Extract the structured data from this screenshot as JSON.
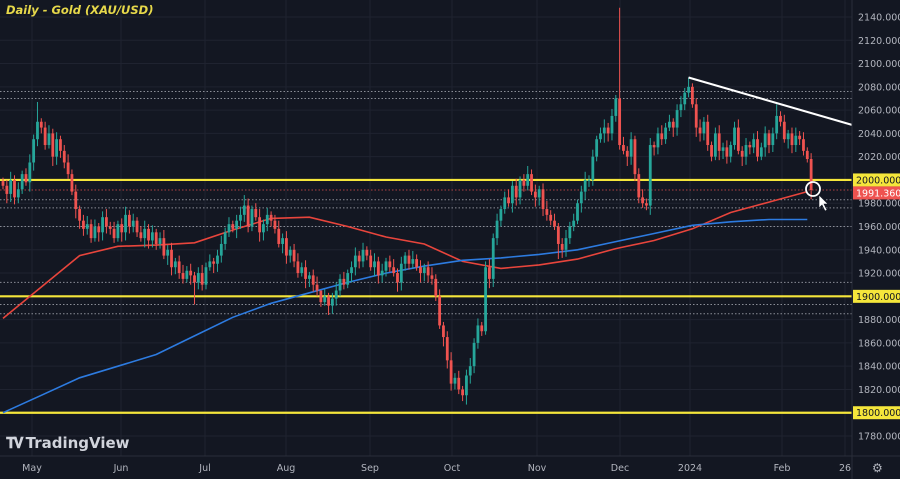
{
  "title": "Daily - Gold (XAU/USD)",
  "brand": "TradingView",
  "colors": {
    "background": "#131722",
    "up": "#26a69a",
    "down": "#ef5350",
    "ma_fast": "#e8453c",
    "ma_slow": "#2d7be0",
    "level": "#f5e63b",
    "trendline": "#ffffff",
    "axis_text": "#b2b5be"
  },
  "chart_data": {
    "type": "candlestick",
    "title": "Daily - Gold (XAU/USD)",
    "ylim": [
      1770,
      2150
    ],
    "grid": true,
    "y_ticks": [
      2140,
      2120,
      2100,
      2080,
      2060,
      2040,
      2020,
      2000,
      1980,
      1960,
      1940,
      1920,
      1900,
      1880,
      1860,
      1840,
      1820,
      1800,
      1780
    ],
    "x_tick_labels": [
      "May",
      "Jun",
      "Jul",
      "Aug",
      "Sep",
      "Oct",
      "Nov",
      "Dec",
      "2024",
      "Feb",
      "26"
    ],
    "closes": [
      1995,
      1988,
      2000,
      1985,
      1992,
      2005,
      1998,
      2015,
      2035,
      2050,
      2045,
      2030,
      2040,
      2020,
      2035,
      2025,
      2015,
      2005,
      1990,
      1975,
      1965,
      1958,
      1962,
      1950,
      1960,
      1955,
      1968,
      1960,
      1958,
      1950,
      1962,
      1955,
      1970,
      1960,
      1965,
      1955,
      1950,
      1958,
      1948,
      1955,
      1945,
      1950,
      1935,
      1940,
      1925,
      1930,
      1920,
      1915,
      1922,
      1918,
      1912,
      1920,
      1910,
      1925,
      1930,
      1928,
      1935,
      1945,
      1955,
      1962,
      1958,
      1965,
      1970,
      1978,
      1960,
      1975,
      1968,
      1955,
      1962,
      1970,
      1965,
      1958,
      1945,
      1950,
      1935,
      1940,
      1930,
      1920,
      1925,
      1915,
      1918,
      1910,
      1905,
      1895,
      1900,
      1892,
      1898,
      1905,
      1915,
      1910,
      1920,
      1925,
      1935,
      1930,
      1940,
      1935,
      1925,
      1930,
      1918,
      1922,
      1930,
      1925,
      1920,
      1912,
      1928,
      1935,
      1928,
      1932,
      1925,
      1920,
      1925,
      1918,
      1915,
      1900,
      1875,
      1865,
      1845,
      1825,
      1830,
      1820,
      1815,
      1832,
      1840,
      1860,
      1875,
      1870,
      1925,
      1915,
      1950,
      1965,
      1975,
      1985,
      1980,
      1995,
      1985,
      2000,
      1995,
      2005,
      1990,
      1985,
      1992,
      1975,
      1970,
      1965,
      1960,
      1945,
      1940,
      1950,
      1960,
      1965,
      1980,
      1990,
      2000,
      2000,
      2020,
      2035,
      2040,
      2045,
      2040,
      2055,
      2070,
      2030,
      2025,
      2020,
      2035,
      2005,
      1985,
      1980,
      1978,
      2030,
      2028,
      2040,
      2035,
      2045,
      2050,
      2045,
      2060,
      2065,
      2075,
      2080,
      2065,
      2045,
      2040,
      2050,
      2030,
      2020,
      2040,
      2025,
      2028,
      2020,
      2030,
      2045,
      2025,
      2020,
      2030,
      2028,
      2035,
      2020,
      2028,
      2040,
      2030,
      2040,
      2055,
      2050,
      2035,
      2040,
      2030,
      2038,
      2035,
      2025,
      2018,
      1991.36
    ],
    "high_overrides": {
      "9": 2067,
      "63": 1987,
      "83": 1898,
      "161": 2148,
      "179": 2088,
      "202": 2065
    },
    "low_overrides": {
      "50": 1893,
      "85": 1884,
      "120": 1810,
      "145": 1932,
      "168": 1974
    },
    "series": [
      {
        "kind": "moving-average",
        "color": "ma_fast",
        "every_n_bars": 10,
        "values": [
          1881,
          1908,
          1935,
          1943,
          1944,
          1946,
          1957,
          1967,
          1968,
          1960,
          1951,
          1945,
          1930,
          1924,
          1927,
          1932,
          1941,
          1948,
          1958,
          1972,
          1981,
          1990
        ]
      },
      {
        "kind": "moving-average",
        "color": "ma_slow",
        "every_n_bars": 10,
        "values": [
          1800,
          1815,
          1830,
          1840,
          1850,
          1866,
          1882,
          1894,
          1903,
          1912,
          1920,
          1926,
          1931,
          1933,
          1936,
          1940,
          1947,
          1954,
          1961,
          1964,
          1966,
          1966
        ]
      }
    ],
    "horizontal_levels": [
      2000,
      1900,
      1800
    ],
    "dotted_levels": [
      2076,
      2070,
      1983,
      1976,
      1960,
      1912,
      1893,
      1885
    ],
    "trendline": {
      "from": {
        "bar": 179,
        "price": 2088
      },
      "to": {
        "bar": 222,
        "price": 2047
      }
    },
    "price_labels": [
      {
        "text": "2000.000",
        "price": 2000,
        "bg": "#f5e63b",
        "fg": "#131722"
      },
      {
        "text": "1991.360",
        "price": 1991.36,
        "bg": "#ef5350",
        "fg": "#ffffff"
      },
      {
        "text": "1900.000",
        "price": 1900,
        "bg": "#f5e63b",
        "fg": "#131722"
      },
      {
        "text": "1800.000",
        "price": 1800,
        "bg": "#f5e63b",
        "fg": "#131722"
      }
    ]
  }
}
